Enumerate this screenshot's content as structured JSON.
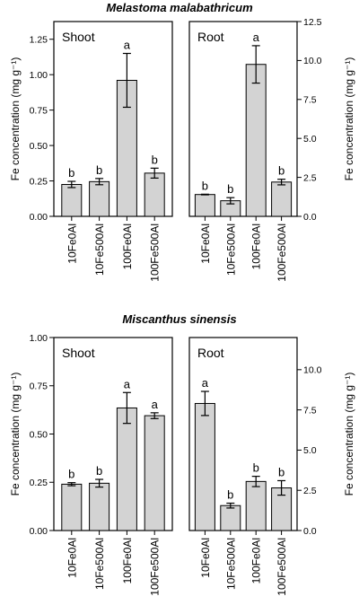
{
  "chart_data": [
    {
      "type": "bar",
      "title": "Melastoma malabathricum",
      "categories": [
        "10Fe0Al",
        "10Fe500Al",
        "100Fe0Al",
        "100Fe500Al"
      ],
      "ylabel": "Fe concentration (mg g⁻¹)",
      "panels": [
        {
          "label": "Shoot",
          "axis_side": "left",
          "ylim": [
            0,
            1.375
          ],
          "yticks": [
            "0.00",
            "0.25",
            "0.50",
            "0.75",
            "1.00",
            "1.25"
          ],
          "values": [
            0.225,
            0.245,
            0.96,
            0.305
          ],
          "errors": [
            0.022,
            0.022,
            0.19,
            0.035
          ],
          "letters": [
            "b",
            "b",
            "a",
            "b"
          ]
        },
        {
          "label": "Root",
          "axis_side": "right",
          "ylim": [
            0,
            12.5
          ],
          "yticks": [
            "0.0",
            "2.5",
            "5.0",
            "7.5",
            "10.0",
            "12.5"
          ],
          "values": [
            1.4,
            1.0,
            9.75,
            2.2
          ],
          "errors": [
            0.02,
            0.2,
            1.2,
            0.18
          ],
          "letters": [
            "b",
            "b",
            "a",
            "b"
          ]
        }
      ]
    },
    {
      "type": "bar",
      "title": "Miscanthus sinensis",
      "categories": [
        "10Fe0Al",
        "10Fe500Al",
        "100Fe0Al",
        "100Fe500Al"
      ],
      "ylabel": "Fe concentration (mg g⁻¹)",
      "panels": [
        {
          "label": "Shoot",
          "axis_side": "left",
          "ylim": [
            0,
            1.0
          ],
          "yticks": [
            "0.00",
            "0.25",
            "0.50",
            "0.75",
            "1.00"
          ],
          "values": [
            0.24,
            0.245,
            0.635,
            0.595
          ],
          "errors": [
            0.008,
            0.02,
            0.08,
            0.015
          ],
          "letters": [
            "b",
            "b",
            "a",
            "a"
          ]
        },
        {
          "label": "Root",
          "axis_side": "right",
          "ylim": [
            0,
            12.0
          ],
          "yticks": [
            "0.0",
            "2.5",
            "5.0",
            "7.5",
            "10.0"
          ],
          "values": [
            7.9,
            1.55,
            3.05,
            2.65
          ],
          "errors": [
            0.75,
            0.15,
            0.32,
            0.45
          ],
          "letters": [
            "a",
            "b",
            "b",
            "b"
          ]
        }
      ]
    }
  ]
}
